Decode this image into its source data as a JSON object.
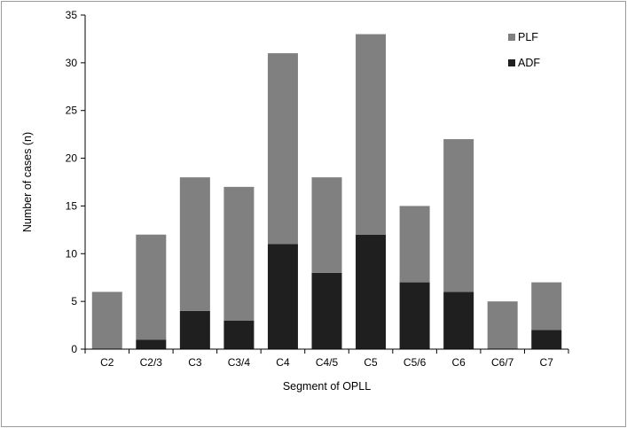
{
  "chart_data": {
    "type": "bar",
    "stacked": true,
    "categories": [
      "C2",
      "C2/3",
      "C3",
      "C3/4",
      "C4",
      "C4/5",
      "C5",
      "C5/6",
      "C6",
      "C6/7",
      "C7"
    ],
    "series": [
      {
        "name": "ADF",
        "values": [
          0,
          1,
          4,
          3,
          11,
          8,
          12,
          7,
          6,
          0,
          2
        ],
        "color": "#1f1f1f"
      },
      {
        "name": "PLF",
        "values": [
          6,
          11,
          14,
          14,
          20,
          10,
          21,
          8,
          16,
          5,
          5
        ],
        "color": "#808080"
      }
    ],
    "xlabel": "Segment of OPLL",
    "ylabel": "Number of cases (n)",
    "ylim": [
      0,
      35
    ],
    "yticks": [
      "0",
      "5",
      "10",
      "15",
      "20",
      "25",
      "30",
      "35"
    ],
    "grid": false,
    "legend": {
      "position": "top-right",
      "order": [
        "PLF",
        "ADF"
      ]
    }
  }
}
